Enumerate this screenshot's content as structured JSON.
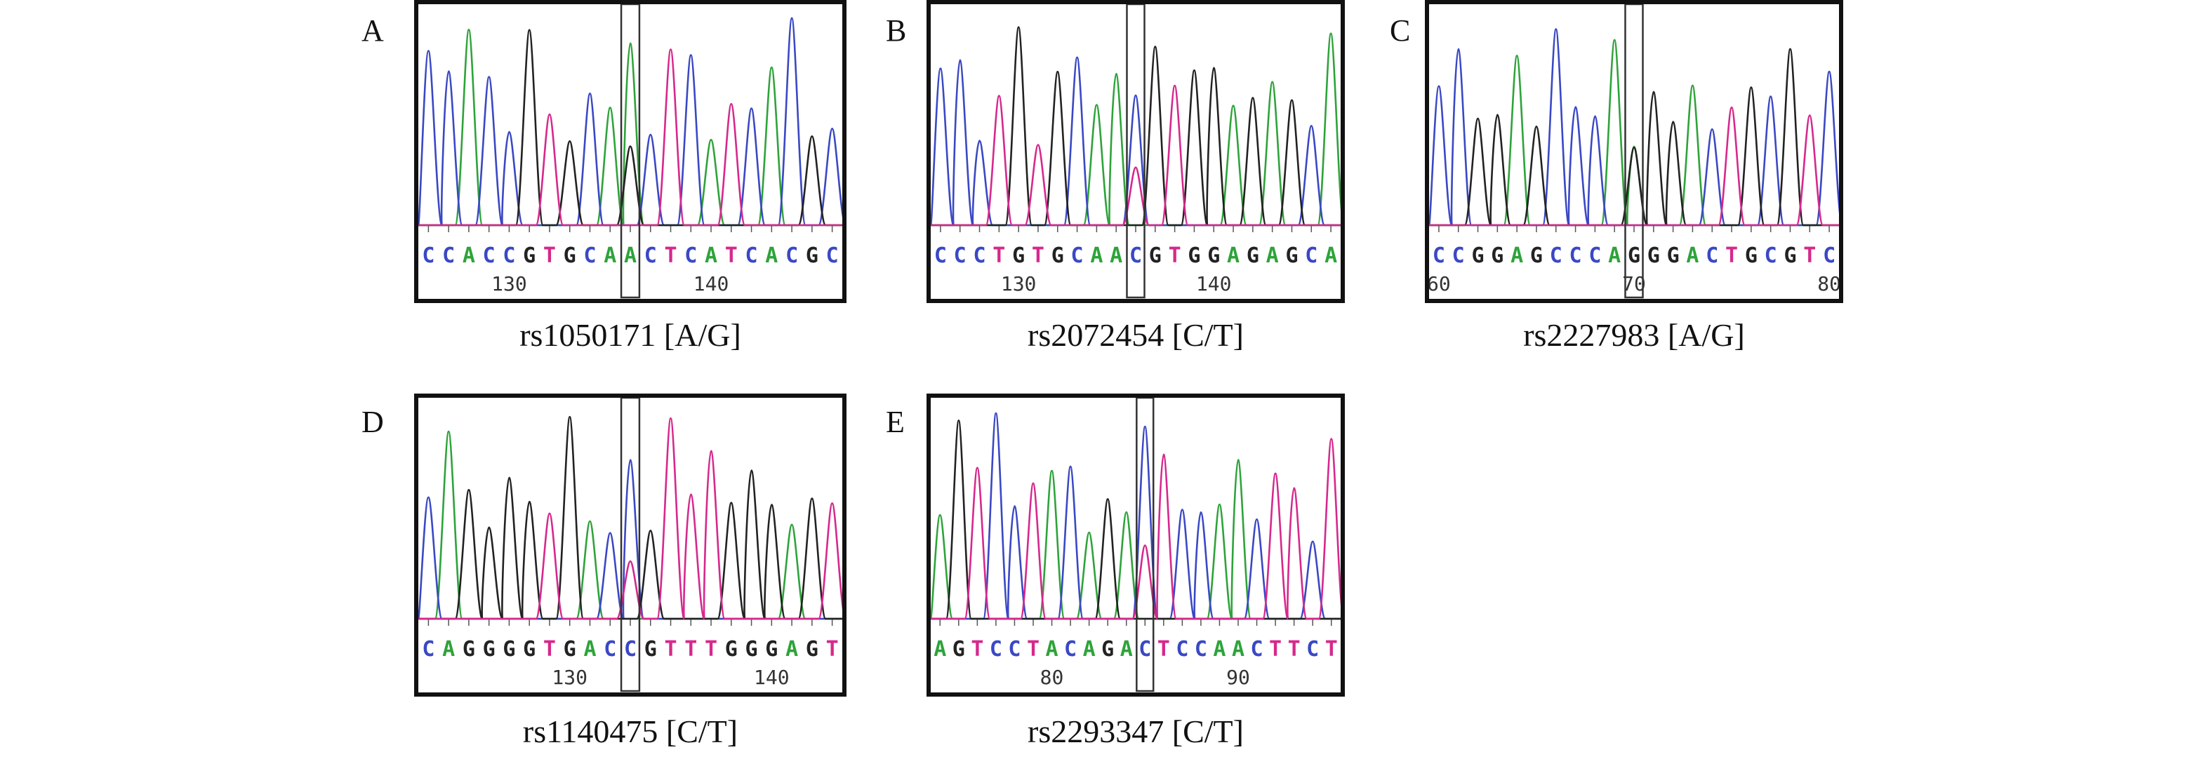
{
  "colors": {
    "A": "#2ea33a",
    "C": "#3a48c4",
    "G": "#222222",
    "T": "#d6288c"
  },
  "panels": [
    {
      "id": "A",
      "letter": "A",
      "caption": "rs1050171 [A/G]",
      "sequence": "CCACCGTGCAACTCATCACGC",
      "highlight_index": 10,
      "positions": [
        {
          "label": "130",
          "index": 4
        },
        {
          "label": "140",
          "index": 14
        }
      ]
    },
    {
      "id": "B",
      "letter": "B",
      "caption": "rs2072454 [C/T]",
      "sequence": "CCCTGTGCAACGTGGAGAGCA",
      "highlight_index": 10,
      "positions": [
        {
          "label": "130",
          "index": 4
        },
        {
          "label": "140",
          "index": 14
        }
      ]
    },
    {
      "id": "C",
      "letter": "C",
      "caption": "rs2227983 [A/G]",
      "sequence": "CCGGAGCCCAGGGACTGCGTC",
      "highlight_index": 10,
      "positions": [
        {
          "label": "60",
          "index": 0
        },
        {
          "label": "70",
          "index": 10
        },
        {
          "label": "80",
          "index": 20
        }
      ]
    },
    {
      "id": "D",
      "letter": "D",
      "caption": "rs1140475 [C/T]",
      "sequence": "CAGGGGTGACCGTTTGGGAGT",
      "highlight_index": 10,
      "positions": [
        {
          "label": "130",
          "index": 7
        },
        {
          "label": "140",
          "index": 17
        }
      ]
    },
    {
      "id": "E",
      "letter": "E",
      "caption": "rs2293347 [C/T]",
      "sequence": "AGTCCTACAGACTCCAACTTCT",
      "highlight_index": 11,
      "positions": [
        {
          "label": "80",
          "index": 6
        },
        {
          "label": "90",
          "index": 16
        }
      ]
    }
  ]
}
